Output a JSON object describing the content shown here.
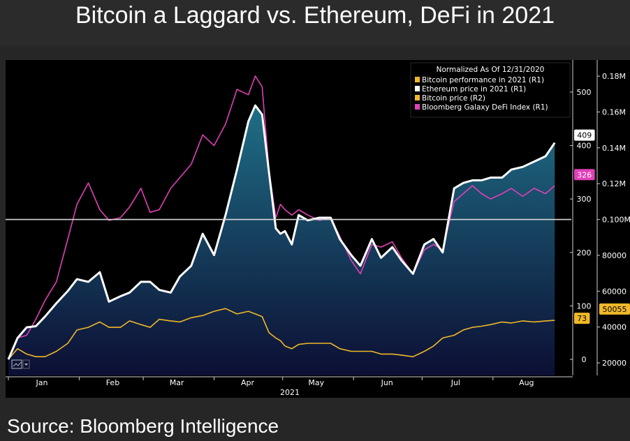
{
  "title": "Bitcoin a Laggard vs. Ethereum, DeFi in 2021",
  "source": "Source: Bloomberg Intelligence",
  "colors": {
    "ethereum": "#ffffff",
    "defi": "#e040b8",
    "bitcoin": "#f0b828",
    "fill_top": "#1f6f86",
    "fill_bottom": "#0c0f34"
  },
  "chart_data": {
    "type": "line",
    "x_unit": "2021 day of year",
    "months": [
      {
        "label": "Jan",
        "day": 0
      },
      {
        "label": "Feb",
        "day": 31
      },
      {
        "label": "Mar",
        "day": 59
      },
      {
        "label": "Apr",
        "day": 90
      },
      {
        "label": "May",
        "day": 120
      },
      {
        "label": "Jun",
        "day": 151
      },
      {
        "label": "Jul",
        "day": 181
      },
      {
        "label": "Aug",
        "day": 212
      }
    ],
    "year_label": "2021",
    "xlim": [
      0,
      242
    ],
    "legend": {
      "placement": "top-right",
      "header": "Normalized As Of 12/31/2020",
      "entries": [
        {
          "label": "Bitcoin performance in 2021 (R1)",
          "color": "#f0b828"
        },
        {
          "label": "Ethereum price in 2021 (R1)",
          "color": "#ffffff"
        },
        {
          "label": "Bitcoin price (R2)",
          "color": "#f0b828"
        },
        {
          "label": "Bloomberg Galaxy DeFi Index (R1)",
          "color": "#e040b8"
        }
      ]
    },
    "right_axis_1": {
      "ticks": [
        0,
        100,
        200,
        300,
        400,
        500
      ],
      "ylim": [
        -30,
        560
      ]
    },
    "right_axis_2": {
      "ticks": [
        {
          "value": 20000,
          "label": "20000"
        },
        {
          "value": 40000,
          "label": "40000"
        },
        {
          "value": 60000,
          "label": "60000"
        },
        {
          "value": 80000,
          "label": "80000"
        },
        {
          "value": 100000,
          "label": "0.100M"
        },
        {
          "value": 120000,
          "label": "0.12M"
        },
        {
          "value": 140000,
          "label": "0.14M"
        },
        {
          "value": 160000,
          "label": "0.16M"
        },
        {
          "value": 180000,
          "label": "0.18M"
        }
      ],
      "ylim": [
        13000,
        189000
      ]
    },
    "reference_line": {
      "value": 100000,
      "label": "0.100M"
    },
    "end_labels": [
      {
        "series": "ethereum",
        "label": "409",
        "value": 409
      },
      {
        "series": "defi",
        "label": "326",
        "value": 326
      },
      {
        "series": "bitcoin",
        "label": "73",
        "value": 73
      },
      {
        "series": "bitcoin_price",
        "label": "50055",
        "value": 50055
      }
    ],
    "series": [
      {
        "name": "Ethereum price in 2021 (R1)",
        "key": "ethereum",
        "x": [
          0,
          4,
          8,
          12,
          16,
          21,
          26,
          30,
          35,
          40,
          44,
          49,
          53,
          58,
          62,
          66,
          71,
          75,
          80,
          85,
          90,
          95,
          100,
          105,
          108,
          111,
          114,
          117,
          119,
          121,
          124,
          127,
          131,
          136,
          141,
          145,
          150,
          154,
          159,
          163,
          168,
          172,
          177,
          182,
          186,
          190,
          195,
          199,
          203,
          207,
          211,
          216,
          220,
          225,
          230,
          235,
          239
        ],
        "values": [
          0,
          40,
          60,
          62,
          80,
          105,
          128,
          150,
          145,
          163,
          108,
          118,
          125,
          145,
          145,
          130,
          125,
          155,
          175,
          235,
          195,
          270,
          355,
          445,
          475,
          458,
          350,
          245,
          235,
          240,
          215,
          270,
          260,
          265,
          265,
          225,
          195,
          175,
          225,
          190,
          210,
          185,
          160,
          215,
          225,
          200,
          320,
          330,
          335,
          335,
          340,
          340,
          355,
          360,
          370,
          380,
          405
        ]
      },
      {
        "name": "Bloomberg Galaxy DeFi Index (R1)",
        "key": "defi",
        "x": [
          0,
          4,
          8,
          12,
          16,
          21,
          26,
          30,
          35,
          40,
          44,
          49,
          53,
          58,
          62,
          66,
          71,
          75,
          80,
          85,
          90,
          95,
          100,
          105,
          108,
          111,
          114,
          117,
          119,
          121,
          124,
          127,
          131,
          136,
          141,
          145,
          150,
          154,
          159,
          163,
          168,
          172,
          177,
          182,
          186,
          190,
          195,
          199,
          203,
          207,
          211,
          216,
          220,
          225,
          230,
          235,
          239
        ],
        "values": [
          0,
          40,
          45,
          75,
          110,
          145,
          225,
          290,
          330,
          280,
          260,
          265,
          285,
          320,
          275,
          280,
          320,
          340,
          365,
          420,
          400,
          440,
          505,
          495,
          530,
          510,
          355,
          265,
          290,
          280,
          270,
          280,
          270,
          260,
          265,
          230,
          185,
          160,
          215,
          210,
          220,
          190,
          160,
          205,
          215,
          205,
          295,
          310,
          325,
          310,
          300,
          310,
          320,
          305,
          320,
          310,
          325
        ]
      },
      {
        "name": "Bitcoin performance in 2021 (R1)",
        "key": "bitcoin",
        "x": [
          0,
          4,
          8,
          12,
          16,
          21,
          26,
          30,
          35,
          40,
          44,
          49,
          53,
          58,
          62,
          66,
          71,
          75,
          80,
          85,
          90,
          95,
          100,
          105,
          108,
          111,
          114,
          117,
          119,
          121,
          124,
          127,
          131,
          136,
          141,
          145,
          150,
          154,
          159,
          163,
          168,
          172,
          177,
          182,
          186,
          190,
          195,
          199,
          203,
          207,
          211,
          216,
          220,
          225,
          230,
          235,
          239
        ],
        "values": [
          0,
          20,
          10,
          5,
          5,
          15,
          30,
          55,
          60,
          70,
          60,
          60,
          72,
          65,
          60,
          75,
          72,
          70,
          78,
          82,
          90,
          95,
          85,
          90,
          85,
          80,
          50,
          40,
          35,
          25,
          20,
          28,
          30,
          30,
          30,
          20,
          15,
          15,
          15,
          10,
          10,
          8,
          5,
          15,
          25,
          40,
          45,
          55,
          60,
          62,
          65,
          70,
          68,
          72,
          70,
          72,
          73
        ]
      }
    ]
  }
}
